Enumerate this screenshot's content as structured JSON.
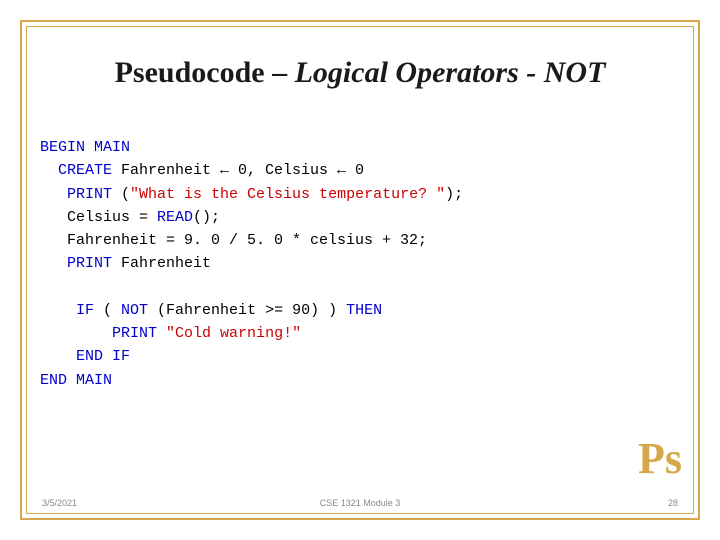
{
  "title": {
    "part1": "Pseudocode – ",
    "part2": "Logical Operators - NOT"
  },
  "code": {
    "l1_kw": "BEGIN MAIN",
    "l2a": "  CREATE",
    "l2b": " Fahrenheit ← 0, Celsius ← 0",
    "l3a": "   PRINT",
    "l3b": " (",
    "l3c": "\"What is the Celsius temperature? \"",
    "l3d": ");",
    "l4a": "   Celsius = ",
    "l4b": "READ",
    "l4c": "();",
    "l5": "   Fahrenheit = 9. 0 / 5. 0 * celsius + 32;",
    "l6a": "   PRINT",
    "l6b": " Fahrenheit",
    "l7": "",
    "l8a": "    IF",
    "l8b": " ( ",
    "l8c": "NOT",
    "l8d": " (Fahrenheit >= 90) ) ",
    "l8e": "THEN",
    "l9a": "        PRINT",
    "l9b": " ",
    "l9c": "\"Cold warning!\"",
    "l10": "    END IF",
    "l11": "END MAIN"
  },
  "logo": "Ps",
  "footer": {
    "date": "3/5/2021",
    "center": "CSE 1321 Module 3",
    "page": "28"
  },
  "colors": {
    "border": "#d4a84b",
    "keyword": "#0000cc",
    "string": "#cc0000",
    "text": "#000000",
    "logo": "#d4a84b",
    "footer": "#888888"
  },
  "fonts": {
    "title_family": "Georgia, serif",
    "title_size_pt": 22,
    "code_family": "Consolas, monospace",
    "code_size_pt": 11,
    "footer_size_pt": 7
  }
}
